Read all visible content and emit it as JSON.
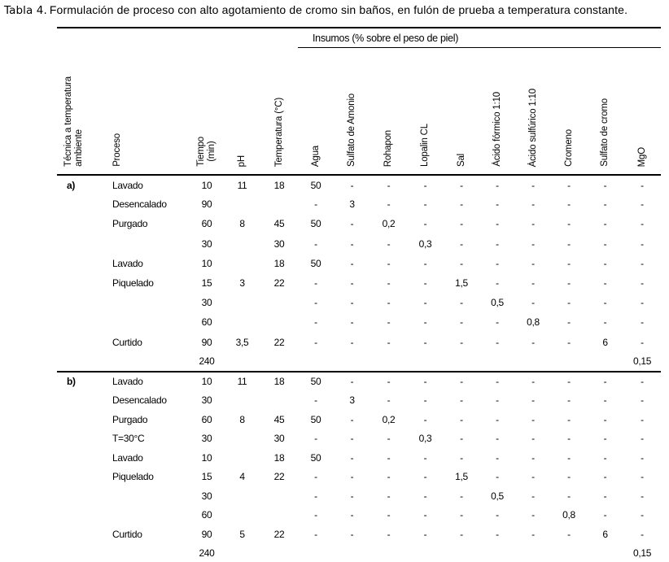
{
  "title": {
    "label": "Tabla 4.",
    "text": "Formulación de proceso con alto agotamiento de cromo sin baños, en fulón de prueba a temperatura constante."
  },
  "table": {
    "insumos_header": "Insumos (% sobre el peso de piel)",
    "columns": [
      {
        "id": "tecnica",
        "lines": [
          "Técnica a temperatura",
          "ambiente"
        ]
      },
      {
        "id": "proceso",
        "lines": [
          "Proceso"
        ]
      },
      {
        "id": "tiempo",
        "lines": [
          "Tiempo",
          "(min)"
        ]
      },
      {
        "id": "ph",
        "lines": [
          "pH"
        ]
      },
      {
        "id": "temperatura",
        "lines": [
          "Temperatura (°C)"
        ]
      },
      {
        "id": "agua",
        "lines": [
          "Agua"
        ]
      },
      {
        "id": "sulfato-amonio",
        "lines": [
          "Sulfato de Amonio"
        ]
      },
      {
        "id": "rohapon",
        "lines": [
          "Rohapon"
        ]
      },
      {
        "id": "lopalin-cl",
        "lines": [
          "Lopalin CL"
        ]
      },
      {
        "id": "sal",
        "lines": [
          "Sal"
        ]
      },
      {
        "id": "acido-formico",
        "lines": [
          "Ácido fórmico 1:10"
        ]
      },
      {
        "id": "acido-sulfurico",
        "lines": [
          "Ácido sulfúrico 1:10"
        ]
      },
      {
        "id": "cromeno",
        "lines": [
          "Cromeno"
        ]
      },
      {
        "id": "sulfato-cromo",
        "lines": [
          "Sulfato de cromo"
        ]
      },
      {
        "id": "mgo",
        "lines": [
          "MgO"
        ]
      }
    ],
    "sections": [
      {
        "id": "a",
        "label": "a)",
        "rows": [
          [
            "a)",
            "Lavado",
            "10",
            "11",
            "18",
            "50",
            "-",
            "-",
            "-",
            "-",
            "-",
            "-",
            "-",
            "-",
            "-"
          ],
          [
            "",
            "Desencalado",
            "90",
            "",
            "",
            "-",
            "3",
            "-",
            "-",
            "-",
            "-",
            "-",
            "-",
            "-",
            "-"
          ],
          [
            "",
            "Purgado",
            "60",
            "8",
            "45",
            "50",
            "-",
            "0,2",
            "-",
            "-",
            "-",
            "-",
            "-",
            "-",
            "-"
          ],
          [
            "",
            "",
            "30",
            "",
            "30",
            "-",
            "-",
            "-",
            "0,3",
            "-",
            "-",
            "-",
            "-",
            "-",
            "-"
          ],
          [
            "",
            "Lavado",
            "10",
            "",
            "18",
            "50",
            "-",
            "-",
            "-",
            "-",
            "-",
            "-",
            "-",
            "-",
            "-"
          ],
          [
            "",
            "Piquelado",
            "15",
            "3",
            "22",
            "-",
            "-",
            "-",
            "-",
            "1,5",
            "-",
            "-",
            "-",
            "-",
            "-"
          ],
          [
            "",
            "",
            "30",
            "",
            "",
            "-",
            "-",
            "-",
            "-",
            "-",
            "0,5",
            "-",
            "-",
            "-",
            "-"
          ],
          [
            "",
            "",
            "60",
            "",
            "",
            "-",
            "-",
            "-",
            "-",
            "-",
            "-",
            "0,8",
            "-",
            "-",
            "-"
          ],
          [
            "",
            "Curtido",
            "90",
            "3,5",
            "22",
            "-",
            "-",
            "-",
            "-",
            "-",
            "-",
            "-",
            "-",
            "6",
            "-"
          ],
          [
            "",
            "",
            "240",
            "",
            "",
            "",
            "",
            "",
            "",
            "",
            "",
            "",
            "",
            "",
            "0,15"
          ]
        ]
      },
      {
        "id": "b",
        "label": "b)",
        "rows": [
          [
            "b)",
            "Lavado",
            "10",
            "11",
            "18",
            "50",
            "-",
            "-",
            "-",
            "-",
            "-",
            "-",
            "-",
            "-",
            "-"
          ],
          [
            "",
            "Desencalado",
            "30",
            "",
            "",
            "-",
            "3",
            "-",
            "-",
            "-",
            "-",
            "-",
            "-",
            "-",
            "-"
          ],
          [
            "",
            "Purgado",
            "60",
            "8",
            "45",
            "50",
            "-",
            "0,2",
            "-",
            "-",
            "-",
            "-",
            "-",
            "-",
            "-"
          ],
          [
            "",
            "T=30°C",
            "30",
            "",
            "30",
            "-",
            "-",
            "-",
            "0,3",
            "-",
            "-",
            "-",
            "-",
            "-",
            "-"
          ],
          [
            "",
            "Lavado",
            "10",
            "",
            "18",
            "50",
            "-",
            "-",
            "-",
            "-",
            "-",
            "-",
            "-",
            "-",
            "-"
          ],
          [
            "",
            "Piquelado",
            "15",
            "4",
            "22",
            "-",
            "-",
            "-",
            "-",
            "1,5",
            "-",
            "-",
            "-",
            "-",
            "-"
          ],
          [
            "",
            "",
            "30",
            "",
            "",
            "-",
            "-",
            "-",
            "-",
            "-",
            "0,5",
            "-",
            "-",
            "-",
            "-"
          ],
          [
            "",
            "",
            "60",
            "",
            "",
            "-",
            "-",
            "-",
            "-",
            "-",
            "-",
            "-",
            "0,8",
            "-",
            "-"
          ],
          [
            "",
            "Curtido",
            "90",
            "5",
            "22",
            "-",
            "-",
            "-",
            "-",
            "-",
            "-",
            "-",
            "-",
            "6",
            "-"
          ],
          [
            "",
            "",
            "240",
            "",
            "",
            "",
            "",
            "",
            "",
            "",
            "",
            "",
            "",
            "",
            "0,15"
          ]
        ]
      }
    ]
  }
}
